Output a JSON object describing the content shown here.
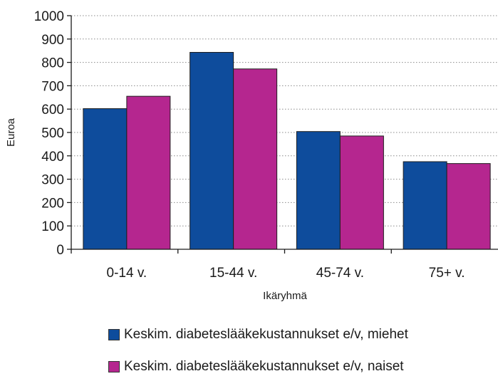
{
  "chart_data": {
    "type": "bar",
    "categories": [
      "0-14 v.",
      "15-44 v.",
      "45-74 v.",
      "75+ v."
    ],
    "series": [
      {
        "name": "Keskim. diabeteslääkekustannukset e/v, miehet",
        "color": "#0e4c9c",
        "values": [
          602,
          843,
          504,
          375
        ]
      },
      {
        "name": "Keskim. diabeteslääkekustannukset e/v, naiset",
        "color": "#b5268f",
        "values": [
          655,
          772,
          485,
          367
        ]
      }
    ],
    "xlabel": "Ikäryhmä",
    "ylabel": "Euroa",
    "ylim": [
      0,
      1000
    ],
    "yticks": [
      "0",
      "100",
      "200",
      "300",
      "400",
      "500",
      "600",
      "700",
      "800",
      "900",
      "1000"
    ],
    "grid": true,
    "legend_position": "bottom"
  }
}
